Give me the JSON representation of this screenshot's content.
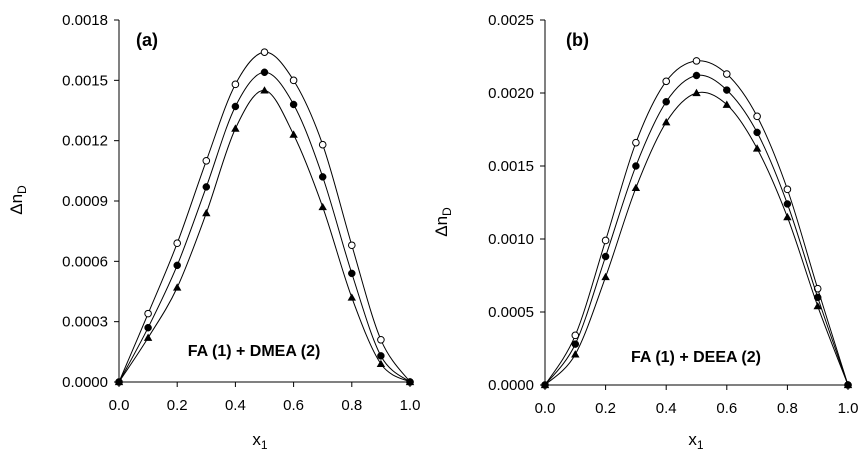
{
  "chart_data": [
    {
      "type": "scatter",
      "panel_label": "(a)",
      "annotation": "FA (1) + DMEA (2)",
      "xlabel_base": "x",
      "xlabel_sub": "1",
      "ylabel_base": "Δn",
      "ylabel_sub": "D",
      "xlim": [
        0,
        1
      ],
      "ylim": [
        0,
        0.0018
      ],
      "x_ticks": [
        "0.0",
        "0.2",
        "0.4",
        "0.6",
        "0.8",
        "1.0"
      ],
      "y_ticks": [
        "0.0000",
        "0.0003",
        "0.0006",
        "0.0009",
        "0.0012",
        "0.0015",
        "0.0018"
      ],
      "x": [
        0,
        0.1,
        0.2,
        0.3,
        0.4,
        0.5,
        0.6,
        0.7,
        0.8,
        0.9,
        1.0
      ],
      "series": [
        {
          "marker": "open-circle",
          "values": [
            0,
            0.00034,
            0.00069,
            0.0011,
            0.00148,
            0.00164,
            0.0015,
            0.00118,
            0.00068,
            0.00021,
            0
          ]
        },
        {
          "marker": "filled-circle",
          "values": [
            0,
            0.00027,
            0.00058,
            0.00097,
            0.00137,
            0.00154,
            0.00138,
            0.00102,
            0.00054,
            0.00013,
            0
          ]
        },
        {
          "marker": "filled-triangle",
          "values": [
            0,
            0.00022,
            0.00047,
            0.00084,
            0.00126,
            0.00145,
            0.00123,
            0.00087,
            0.00042,
            9e-05,
            0
          ]
        }
      ]
    },
    {
      "type": "scatter",
      "panel_label": "(b)",
      "annotation": "FA (1) + DEEA (2)",
      "xlabel_base": "x",
      "xlabel_sub": "1",
      "ylabel_base": "Δn",
      "ylabel_sub": "D",
      "xlim": [
        0,
        1
      ],
      "ylim": [
        0,
        0.0025
      ],
      "x_ticks": [
        "0.0",
        "0.2",
        "0.4",
        "0.6",
        "0.8",
        "1.0"
      ],
      "y_ticks": [
        "0.0000",
        "0.0005",
        "0.0010",
        "0.0015",
        "0.0020",
        "0.0025"
      ],
      "x": [
        0,
        0.1,
        0.2,
        0.3,
        0.4,
        0.5,
        0.6,
        0.7,
        0.8,
        0.9,
        1.0
      ],
      "series": [
        {
          "marker": "open-circle",
          "values": [
            0,
            0.00034,
            0.00099,
            0.00166,
            0.00208,
            0.00222,
            0.00213,
            0.00184,
            0.00134,
            0.00066,
            0
          ]
        },
        {
          "marker": "filled-circle",
          "values": [
            0,
            0.00028,
            0.00088,
            0.0015,
            0.00194,
            0.00212,
            0.00202,
            0.00173,
            0.00124,
            0.0006,
            0
          ]
        },
        {
          "marker": "filled-triangle",
          "values": [
            0,
            0.00021,
            0.00074,
            0.00135,
            0.0018,
            0.002,
            0.00192,
            0.00162,
            0.00115,
            0.00054,
            0
          ]
        }
      ]
    }
  ]
}
